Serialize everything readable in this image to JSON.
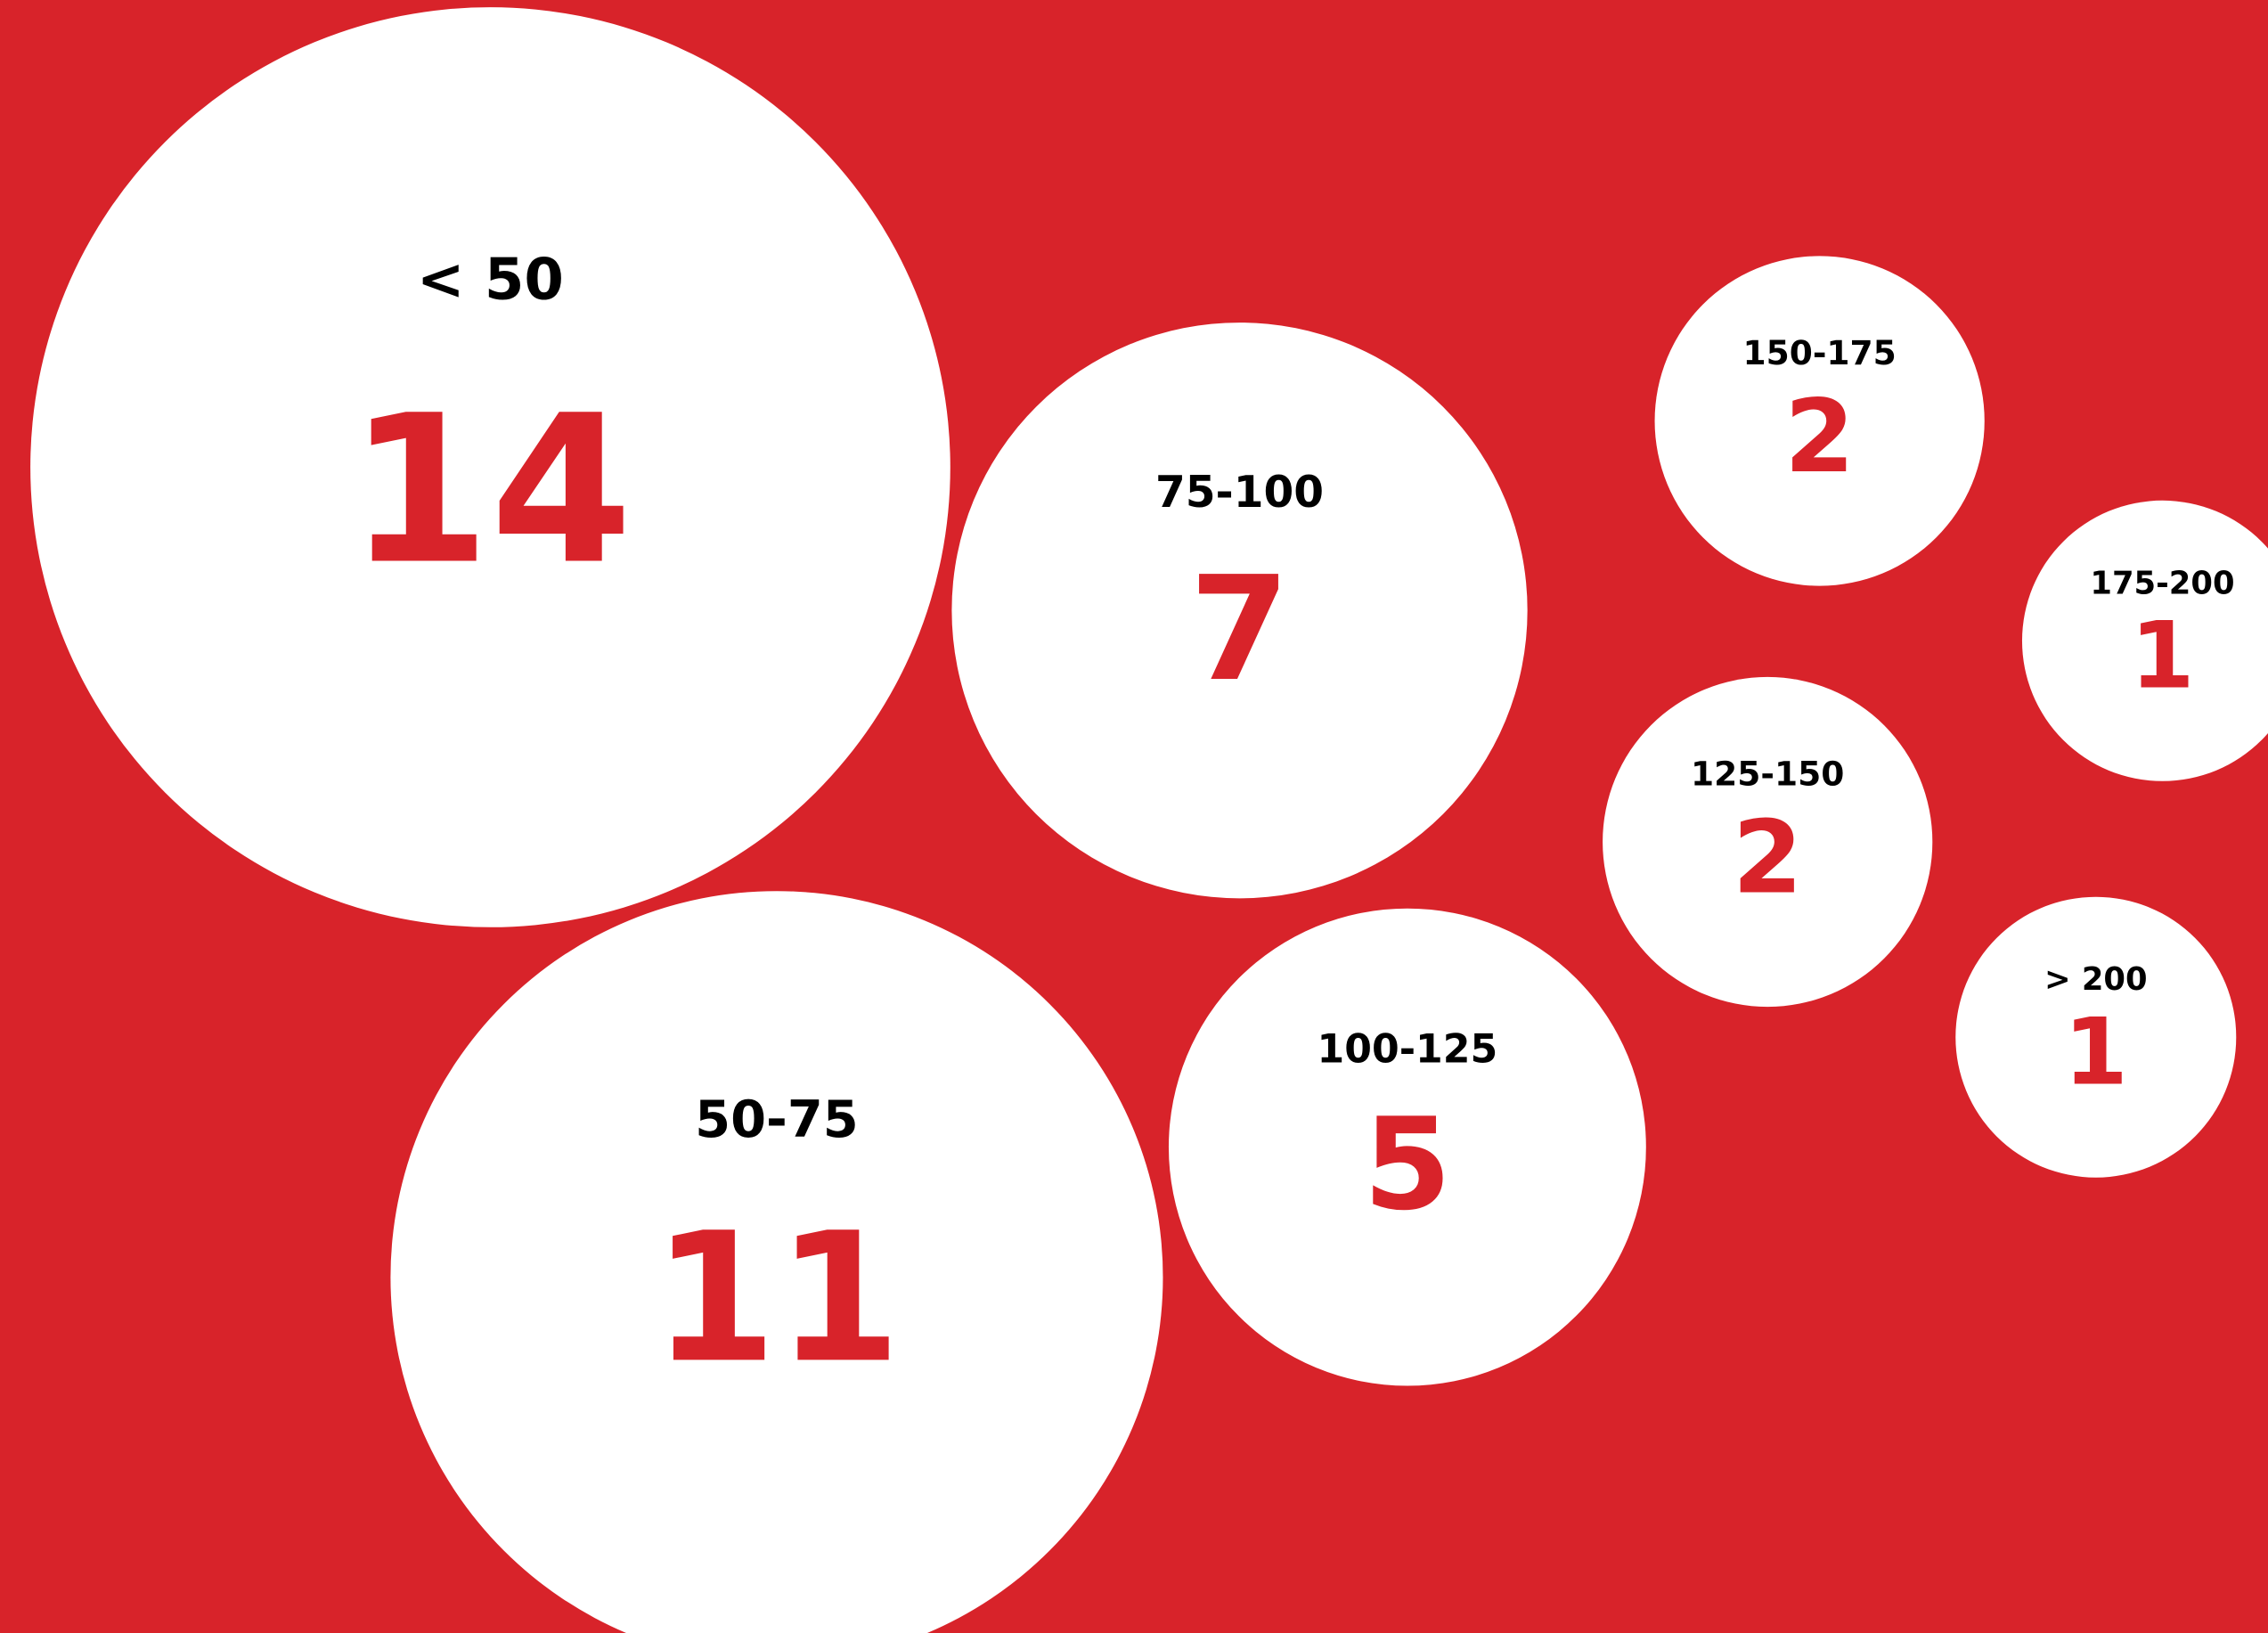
{
  "chart_data": {
    "type": "bubble",
    "categories": [
      "< 50",
      "50-75",
      "75-100",
      "100-125",
      "125-150",
      "150-175",
      "175-200",
      "> 200"
    ],
    "values": [
      14,
      11,
      7,
      5,
      2,
      2,
      1,
      1
    ],
    "color": "#ffffff",
    "label_color": "#000000",
    "value_color": "#d8232a",
    "background": "#d8232a"
  }
}
